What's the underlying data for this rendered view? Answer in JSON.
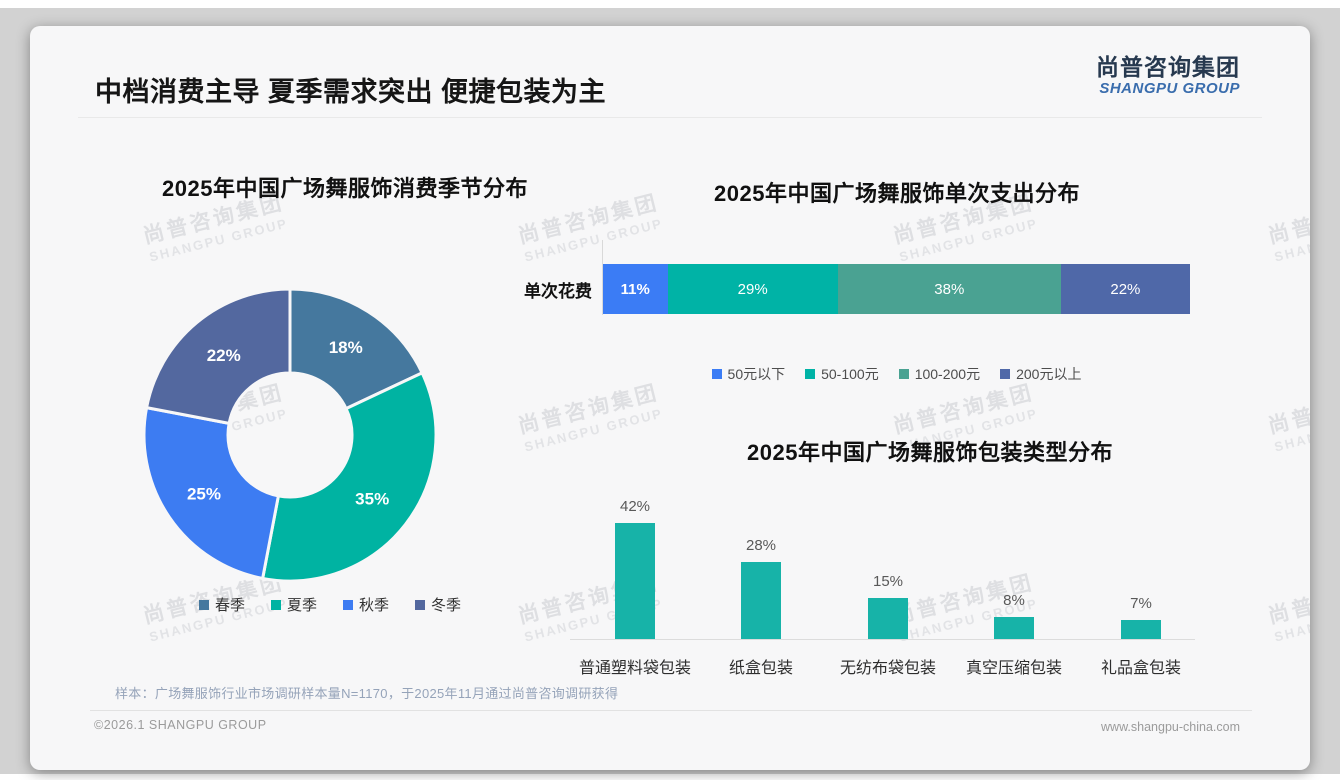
{
  "page": {
    "title": "中档消费主导 夏季需求突出 便捷包装为主",
    "logo": {
      "cn": "尚普咨询集团",
      "en": "SHANGPU GROUP"
    },
    "watermark": {
      "line1": "尚普咨询集团",
      "line2": "SHANGPU GROUP"
    },
    "footer": {
      "sample_note": "样本：广场舞服饰行业市场调研样本量N=1170，于2025年11月通过尚普咨询调研获得",
      "copyright": "©2026.1 SHANGPU GROUP",
      "website": "www.shangpu-china.com"
    },
    "colors": {
      "card_bg": "#f7f7f8",
      "outer_bg": "#d2d2d2",
      "teal_accent": "#17b3a8"
    }
  },
  "chart_data": [
    {
      "type": "pie",
      "subtype": "donut",
      "title": "2025年中国广场舞服饰消费季节分布",
      "categories": [
        "春季",
        "夏季",
        "秋季",
        "冬季"
      ],
      "values": [
        18,
        35,
        25,
        22
      ],
      "unit": "%",
      "colors": [
        "#45789e",
        "#00b3a2",
        "#3d7cf2",
        "#53689f"
      ],
      "legend_position": "bottom",
      "start_angle": "top",
      "direction": "clockwise"
    },
    {
      "type": "bar",
      "subtype": "horizontal-stacked",
      "title": "2025年中国广场舞服饰单次支出分布",
      "row_label": "单次花费",
      "categories": [
        "50元以下",
        "50-100元",
        "100-200元",
        "200元以上"
      ],
      "values": [
        11,
        29,
        38,
        22
      ],
      "unit": "%",
      "colors": [
        "#3b7cf5",
        "#00b3a6",
        "#4aa292",
        "#4f68a8"
      ],
      "legend_position": "bottom",
      "xlim": [
        0,
        100
      ]
    },
    {
      "type": "bar",
      "subtype": "vertical",
      "title": "2025年中国广场舞服饰包装类型分布",
      "categories": [
        "普通塑料袋包装",
        "纸盒包装",
        "无纺布袋包装",
        "真空压缩包装",
        "礼品盒包装"
      ],
      "values": [
        42,
        28,
        15,
        8,
        7
      ],
      "unit": "%",
      "color": "#17b3a8",
      "ylim": [
        0,
        45
      ],
      "grid": false,
      "value_labels": "above"
    }
  ]
}
